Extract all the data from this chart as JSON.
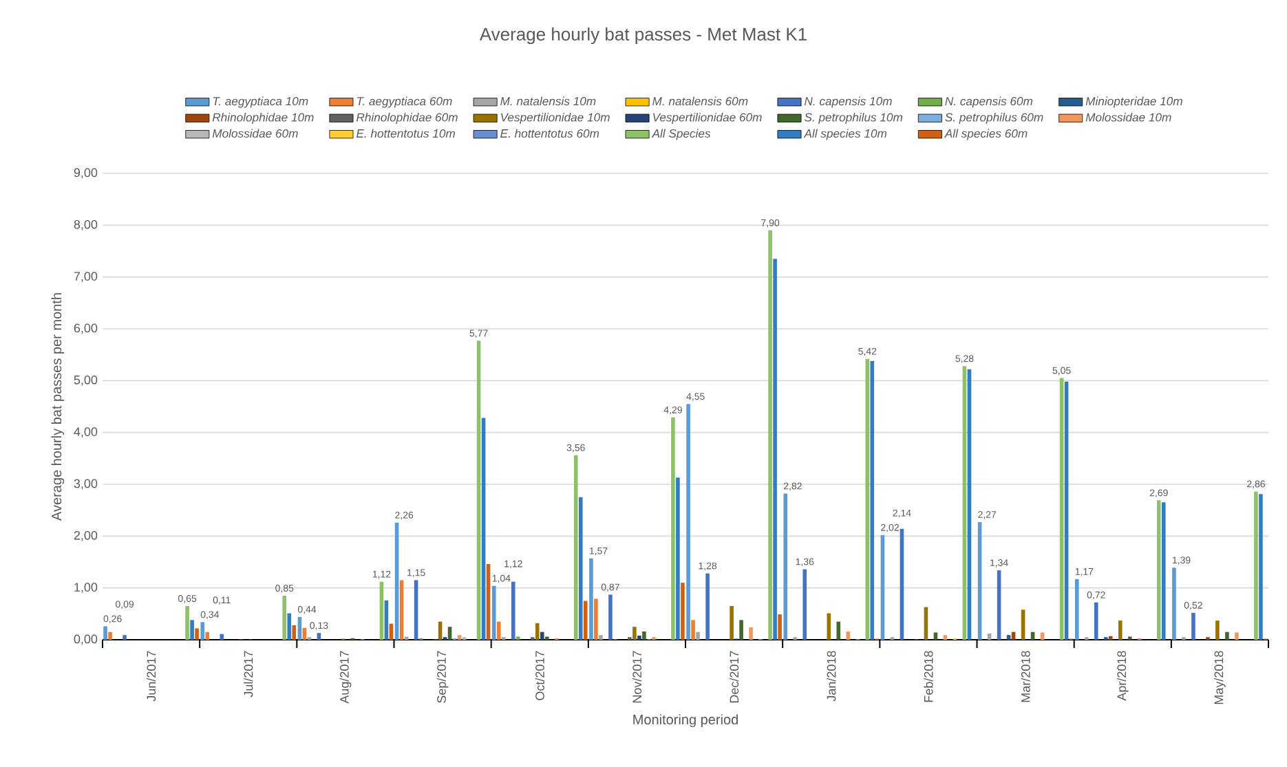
{
  "chart_data": {
    "type": "bar",
    "title": "Average hourly bat passes - Met Mast K1",
    "xlabel": "Monitoring period",
    "ylabel": "Average hourly bat passes per month",
    "categories": [
      "Jun/2017",
      "Jul/2017",
      "Aug/2017",
      "Sep/2017",
      "Oct/2017",
      "Nov/2017",
      "Dec/2017",
      "Jan/2018",
      "Feb/2018",
      "Mar/2018",
      "Apr/2018",
      "May/2018"
    ],
    "ylim": [
      0,
      9
    ],
    "yticks": [
      {
        "value": 0,
        "label": "0,00"
      },
      {
        "value": 1,
        "label": "1,00"
      },
      {
        "value": 2,
        "label": "2,00"
      },
      {
        "value": 3,
        "label": "3,00"
      },
      {
        "value": 4,
        "label": "4,00"
      },
      {
        "value": 5,
        "label": "5,00"
      },
      {
        "value": 6,
        "label": "6,00"
      },
      {
        "value": 7,
        "label": "7,00"
      },
      {
        "value": 8,
        "label": "8,00"
      },
      {
        "value": 9,
        "label": "9,00"
      }
    ],
    "grid": "y",
    "legend": "top",
    "series": [
      {
        "name": "T. aegyptiaca 10m",
        "color": "#5b9bd5",
        "values": [
          0.26,
          0.34,
          0.44,
          2.26,
          1.04,
          1.57,
          4.55,
          2.82,
          2.02,
          2.27,
          1.17,
          1.39
        ],
        "value_labels": [
          "0,26",
          "0,34",
          "0,44",
          "2,26",
          "1,04",
          "1,57",
          "4,55",
          "2,82",
          "2,02",
          "2,27",
          "1,17",
          "1,39"
        ]
      },
      {
        "name": "T. aegyptiaca 60m",
        "color": "#ed7d31",
        "values": [
          0.15,
          0.15,
          0.23,
          1.15,
          0.35,
          0.79,
          0.38,
          0,
          0,
          0,
          0,
          0
        ]
      },
      {
        "name": "M. natalensis 10m",
        "color": "#a5a5a5",
        "values": [
          0,
          0,
          0.05,
          0.06,
          0.05,
          0.09,
          0.15,
          0.05,
          0.05,
          0.12,
          0.05,
          0.05
        ]
      },
      {
        "name": "M. natalensis 60m",
        "color": "#ffc000",
        "values": [
          0,
          0,
          0,
          0,
          0,
          0,
          0,
          0,
          0,
          0,
          0,
          0
        ]
      },
      {
        "name": "N. capensis 10m",
        "color": "#4472c4",
        "values": [
          0.09,
          0.11,
          0.13,
          1.15,
          1.12,
          0.87,
          1.28,
          1.36,
          2.14,
          1.34,
          0.72,
          0.52
        ],
        "value_labels": [
          "0,09",
          "0,11",
          "0,13",
          "1,15",
          "1,12",
          "0,87",
          "1,28",
          "1,36",
          "2,14",
          "1,34",
          "0,72",
          "0,52"
        ]
      },
      {
        "name": "N. capensis 60m",
        "color": "#70ad47",
        "values": [
          0,
          0,
          0,
          0.03,
          0.06,
          0.01,
          0,
          0,
          0,
          0,
          0,
          0
        ]
      },
      {
        "name": "Miniopteridae 10m",
        "color": "#255e91",
        "values": [
          0,
          0,
          0,
          0,
          0,
          0,
          0,
          0,
          0,
          0.09,
          0.05,
          0
        ]
      },
      {
        "name": "Rhinolophidae 10m",
        "color": "#9e480e",
        "values": [
          0,
          0,
          0,
          0,
          0,
          0,
          0,
          0,
          0.01,
          0.15,
          0.07,
          0.05
        ]
      },
      {
        "name": "Rhinolophidae 60m",
        "color": "#636363",
        "values": [
          0,
          0.01,
          0,
          0.01,
          0.05,
          0.05,
          0,
          0,
          0,
          0,
          0,
          0
        ]
      },
      {
        "name": "Vespertilionidae 10m",
        "color": "#997300",
        "values": [
          0,
          0,
          0.02,
          0.35,
          0.32,
          0.25,
          0.65,
          0.51,
          0.63,
          0.58,
          0.37,
          0.37
        ]
      },
      {
        "name": "Vespertilionidae 60m",
        "color": "#264478",
        "values": [
          0,
          0.01,
          0,
          0.05,
          0.15,
          0.08,
          0.02,
          0,
          0,
          0,
          0,
          0
        ]
      },
      {
        "name": "S. petrophilus 10m",
        "color": "#43682b",
        "values": [
          0,
          0,
          0.03,
          0.25,
          0.06,
          0.16,
          0.38,
          0.35,
          0.14,
          0.15,
          0.06,
          0.15
        ]
      },
      {
        "name": "S. petrophilus 60m",
        "color": "#7cafdd",
        "values": [
          0,
          0,
          0,
          0.03,
          0,
          0.01,
          0,
          0,
          0,
          0,
          0,
          0
        ]
      },
      {
        "name": "Molossidae 10m",
        "color": "#f1975a",
        "values": [
          0,
          0,
          0.01,
          0.09,
          0.03,
          0.05,
          0.24,
          0.16,
          0.09,
          0.14,
          0.03,
          0.14
        ]
      },
      {
        "name": "Molossidae 60m",
        "color": "#b7b7b7",
        "values": [
          0,
          0,
          0,
          0.05,
          0,
          0,
          0,
          0,
          0,
          0,
          0,
          0
        ]
      },
      {
        "name": "E. hottentotus 10m",
        "color": "#ffcd33",
        "values": [
          0,
          0,
          0,
          0,
          0,
          0,
          0.01,
          0.01,
          0.03,
          0,
          0,
          0
        ]
      },
      {
        "name": "E. hottentotus 60m",
        "color": "#698ed0",
        "values": [
          0,
          0,
          0,
          0,
          0,
          0,
          0,
          0,
          0,
          0,
          0,
          0
        ]
      },
      {
        "name": "All Species",
        "color": "#8cc168",
        "values": [
          0.65,
          0.85,
          1.12,
          5.77,
          3.56,
          4.29,
          7.9,
          5.42,
          5.28,
          5.05,
          2.69,
          2.86
        ],
        "value_labels": [
          "0,65",
          "0,85",
          "1,12",
          "5,77",
          "3,56",
          "4,29",
          "7,90",
          "5,42",
          "5,28",
          "5,05",
          "2,69",
          "2,86"
        ]
      },
      {
        "name": "All species 10m",
        "color": "#327dc2",
        "values": [
          0.38,
          0.51,
          0.76,
          4.28,
          2.75,
          3.13,
          7.35,
          5.38,
          5.22,
          4.98,
          2.65,
          2.81
        ]
      },
      {
        "name": "All species 60m",
        "color": "#d26012",
        "values": [
          0.22,
          0.28,
          0.31,
          1.46,
          0.75,
          1.1,
          0.49,
          0.02,
          0,
          0.02,
          0,
          0.02
        ]
      }
    ]
  }
}
